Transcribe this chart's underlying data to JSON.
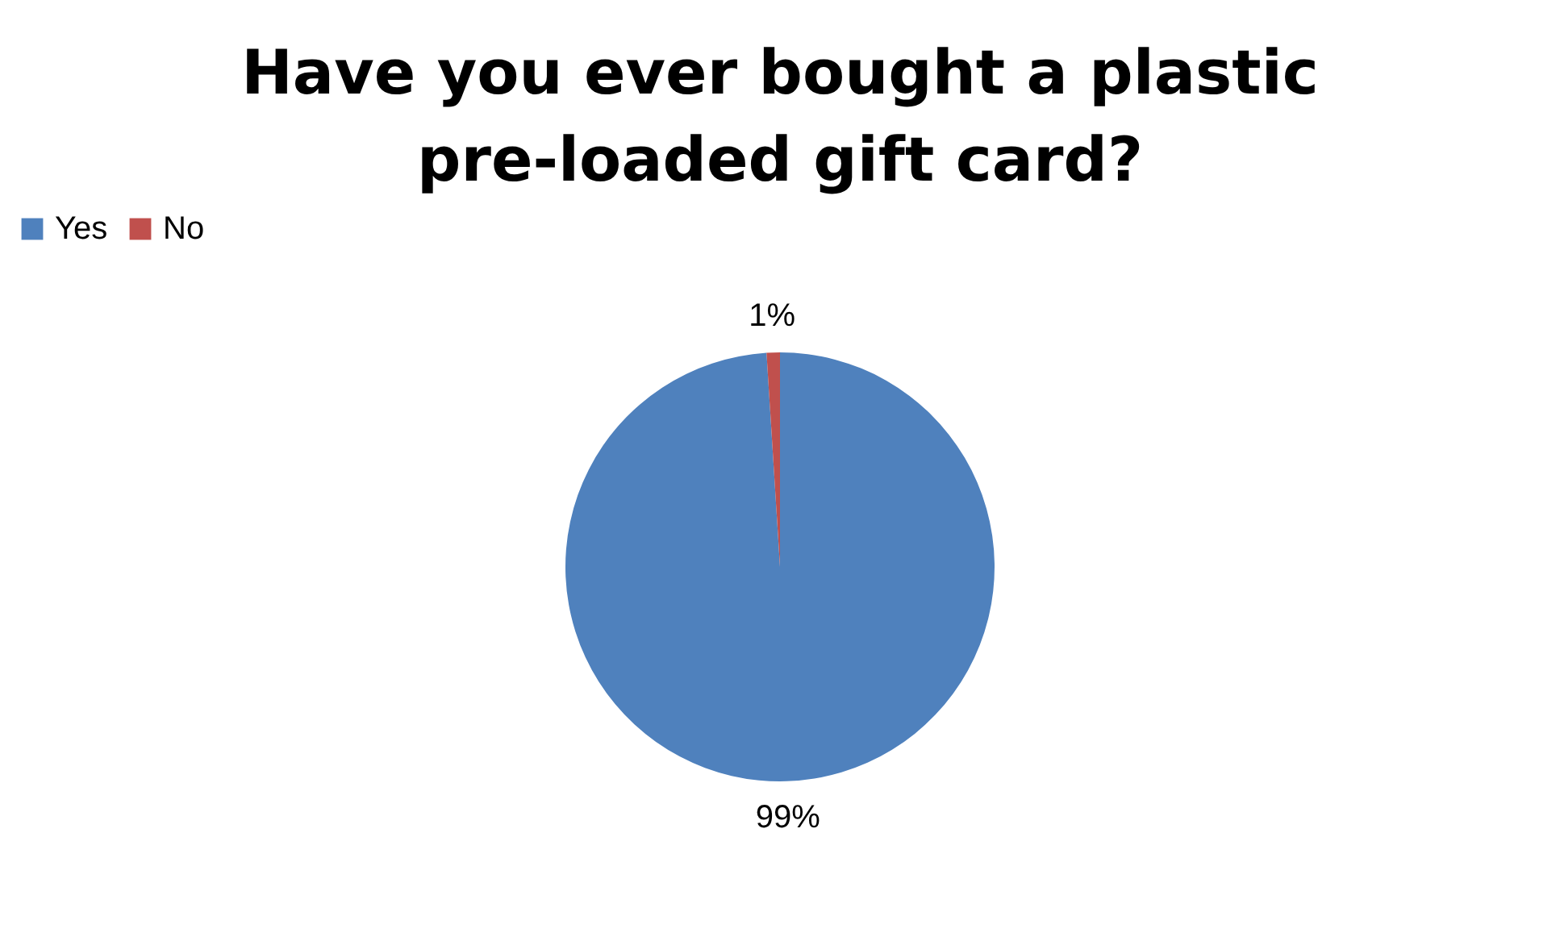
{
  "chart_data": {
    "type": "pie",
    "title": "Have you ever bought a plastic pre-loaded gift card?",
    "categories": [
      "Yes",
      "No"
    ],
    "values": [
      99,
      1
    ],
    "colors": [
      "#4f81bd",
      "#c0504d"
    ],
    "value_labels": [
      "99%",
      "1%"
    ],
    "legend": "top"
  }
}
